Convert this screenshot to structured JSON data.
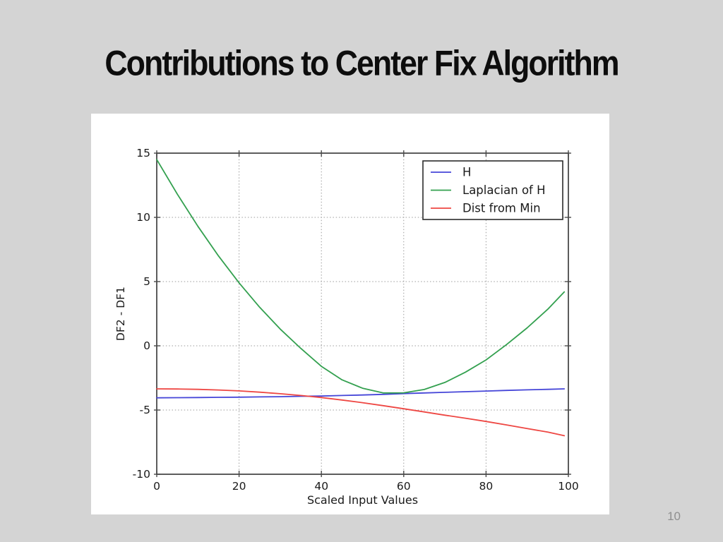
{
  "slide": {
    "title": "Contributions to Center Fix Algorithm",
    "page_number": "10",
    "background_color": "#d4d4d4",
    "panel_color": "#ffffff"
  },
  "chart_data": {
    "type": "line",
    "title": "",
    "xlabel": "Scaled Input Values",
    "ylabel": "DF2 - DF1",
    "xlim": [
      0,
      100
    ],
    "ylim": [
      -10,
      15
    ],
    "x_ticks": [
      0,
      20,
      40,
      60,
      80,
      100
    ],
    "y_ticks": [
      15,
      10,
      5,
      0,
      -5,
      -10
    ],
    "grid": true,
    "grid_style": "dotted",
    "legend_position": "upper right",
    "frame_color": "#4a4a4a",
    "grid_color": "#9b9b9b",
    "text_color": "#1a1a1a",
    "x": [
      0,
      5,
      10,
      15,
      20,
      25,
      30,
      35,
      40,
      45,
      50,
      55,
      60,
      65,
      70,
      75,
      80,
      85,
      90,
      95,
      99
    ],
    "series": [
      {
        "name": "H",
        "color": "#4646d8",
        "values": [
          -4.05,
          -4.04,
          -4.03,
          -4.01,
          -4.0,
          -3.98,
          -3.96,
          -3.93,
          -3.91,
          -3.87,
          -3.83,
          -3.78,
          -3.72,
          -3.67,
          -3.62,
          -3.57,
          -3.52,
          -3.47,
          -3.43,
          -3.39,
          -3.35
        ]
      },
      {
        "name": "Laplacian of H",
        "color": "#33a04f",
        "values": [
          14.5,
          11.8,
          9.3,
          7.0,
          4.9,
          3.0,
          1.3,
          -0.2,
          -1.6,
          -2.65,
          -3.3,
          -3.67,
          -3.66,
          -3.4,
          -2.85,
          -2.05,
          -1.1,
          0.1,
          1.4,
          2.85,
          4.2
        ]
      },
      {
        "name": "Dist from Min",
        "color": "#ee4743",
        "values": [
          -3.35,
          -3.36,
          -3.39,
          -3.44,
          -3.51,
          -3.61,
          -3.73,
          -3.87,
          -4.03,
          -4.22,
          -4.43,
          -4.66,
          -4.9,
          -5.15,
          -5.4,
          -5.64,
          -5.89,
          -6.16,
          -6.44,
          -6.72,
          -7.0
        ]
      }
    ]
  }
}
